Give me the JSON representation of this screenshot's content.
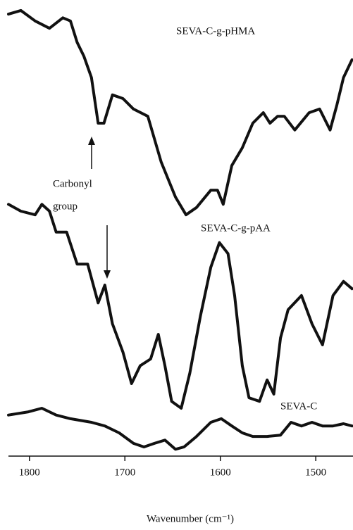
{
  "chart_data": {
    "type": "line",
    "x_label": "Wavenumber (cm⁻¹)",
    "xlim": [
      1822,
      1461
    ],
    "xticks": [
      1800,
      1700,
      1600,
      1500
    ],
    "ylim": [
      0,
      100
    ],
    "annotation": [
      "Carbonyl",
      "group"
    ],
    "series": [
      {
        "name": "SEVA-C-g-pHMA",
        "color": "#111111",
        "x": [
          1822,
          1809,
          1794,
          1779,
          1765,
          1757,
          1750,
          1743,
          1735,
          1728,
          1722,
          1713,
          1702,
          1691,
          1676,
          1662,
          1647,
          1636,
          1625,
          1610,
          1603,
          1597,
          1588,
          1577,
          1566,
          1555,
          1548,
          1540,
          1533,
          1522,
          1507,
          1496,
          1485,
          1478,
          1471,
          1462
        ],
        "values": [
          96.9,
          97.7,
          95.4,
          93.8,
          96.1,
          95.4,
          90.7,
          87.7,
          83.0,
          73.0,
          73.0,
          79.2,
          78.4,
          76.1,
          74.5,
          64.5,
          56.8,
          52.9,
          54.5,
          58.3,
          58.3,
          55.2,
          63.7,
          67.6,
          73.0,
          75.3,
          73.0,
          74.5,
          74.5,
          71.5,
          75.3,
          76.1,
          71.5,
          76.9,
          83.0,
          86.9
        ]
      },
      {
        "name": "SEVA-C-g-pAA",
        "color": "#111111",
        "x": [
          1822,
          1809,
          1794,
          1787,
          1779,
          1772,
          1761,
          1750,
          1739,
          1728,
          1721,
          1713,
          1702,
          1693,
          1684,
          1673,
          1665,
          1658,
          1651,
          1641,
          1632,
          1621,
          1610,
          1601,
          1592,
          1585,
          1577,
          1570,
          1559,
          1551,
          1544,
          1537,
          1529,
          1515,
          1504,
          1493,
          1482,
          1471,
          1462
        ],
        "values": [
          55.2,
          53.7,
          52.9,
          55.2,
          53.7,
          49.1,
          49.1,
          42.1,
          42.1,
          33.6,
          37.5,
          29.0,
          22.8,
          15.9,
          19.8,
          21.3,
          26.7,
          19.8,
          12.0,
          10.5,
          18.2,
          30.6,
          41.4,
          46.8,
          44.4,
          35.2,
          19.8,
          12.8,
          12.0,
          16.7,
          13.6,
          25.9,
          32.1,
          35.2,
          29.0,
          24.4,
          35.2,
          38.3,
          36.7
        ]
      },
      {
        "name": "SEVA-C",
        "color": "#111111",
        "x": [
          1822,
          1801,
          1787,
          1772,
          1757,
          1735,
          1721,
          1706,
          1691,
          1680,
          1669,
          1658,
          1647,
          1638,
          1625,
          1610,
          1599,
          1588,
          1577,
          1566,
          1551,
          1537,
          1526,
          1515,
          1504,
          1493,
          1482,
          1471,
          1462
        ],
        "values": [
          9.0,
          9.7,
          10.5,
          9.0,
          8.2,
          7.4,
          6.6,
          5.1,
          2.8,
          2.0,
          2.8,
          3.5,
          1.5,
          2.0,
          4.3,
          7.4,
          8.2,
          6.6,
          5.1,
          4.3,
          4.3,
          4.6,
          7.4,
          6.6,
          7.4,
          6.6,
          6.6,
          7.1,
          6.6
        ]
      }
    ]
  }
}
